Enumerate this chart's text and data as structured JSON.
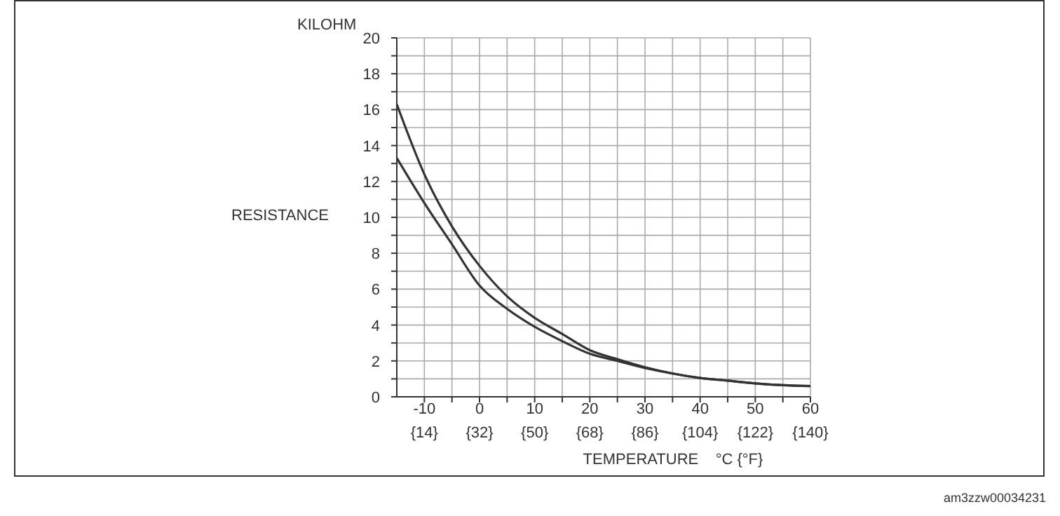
{
  "chart_data": {
    "type": "line",
    "xlabel": "TEMPERATURE    °C {°F}",
    "ylabel": "RESISTANCE",
    "annotations": [
      "KILOHM",
      "am3zzw00034231"
    ],
    "x": [
      -15,
      -10,
      -5,
      0,
      5,
      10,
      15,
      20,
      25,
      30,
      35,
      40,
      45,
      50,
      55,
      60
    ],
    "series": [
      {
        "color": "#333333",
        "values": [
          16.3,
          12.4,
          9.5,
          7.3,
          5.6,
          4.4,
          3.5,
          2.6,
          2.1,
          1.65,
          1.3,
          1.05,
          0.9,
          0.75,
          0.65,
          0.6
        ]
      },
      {
        "color": "#333333",
        "values": [
          13.3,
          10.8,
          8.5,
          6.2,
          4.9,
          3.9,
          3.1,
          2.4,
          2.0,
          1.6,
          1.3,
          1.05,
          0.9,
          0.75,
          0.65,
          0.6
        ]
      }
    ],
    "xlim": [
      -15,
      60
    ],
    "xticks": [
      -10,
      {
        "value": -5,
        "label": null
      },
      0,
      {
        "value": 5,
        "label": null
      },
      10,
      {
        "value": 15,
        "label": null
      },
      20,
      {
        "value": 25,
        "label": null
      },
      30,
      {
        "value": 35,
        "label": null
      },
      40,
      {
        "value": 45,
        "label": null
      },
      50,
      {
        "value": 55,
        "label": null
      },
      60
    ],
    "x2lim": [
      5,
      140
    ],
    "x2ticks": [
      {
        "value": 14,
        "label": "{14}"
      },
      {
        "value": 32,
        "label": "{32}"
      },
      {
        "value": 50,
        "label": "{50}"
      },
      {
        "value": 68,
        "label": "{68}"
      },
      {
        "value": 86,
        "label": "{86}"
      },
      {
        "value": 104,
        "label": "{104}"
      },
      {
        "value": 122,
        "label": "{122}"
      },
      {
        "value": 140,
        "label": "{140}"
      }
    ],
    "ylim": [
      0,
      20
    ],
    "yticks": [
      0,
      {
        "value": 1,
        "label": null
      },
      2,
      {
        "value": 3,
        "label": null
      },
      4,
      {
        "value": 5,
        "label": null
      },
      6,
      {
        "value": 7,
        "label": null
      },
      8,
      {
        "value": 9,
        "label": null
      },
      10,
      {
        "value": 11,
        "label": null
      },
      12,
      {
        "value": 13,
        "label": null
      },
      14,
      {
        "value": 15,
        "label": null
      },
      16,
      {
        "value": 17,
        "label": null
      },
      18,
      {
        "value": 19,
        "label": null
      },
      20
    ],
    "grid": true,
    "marker": "none",
    "line_style": "solid"
  }
}
